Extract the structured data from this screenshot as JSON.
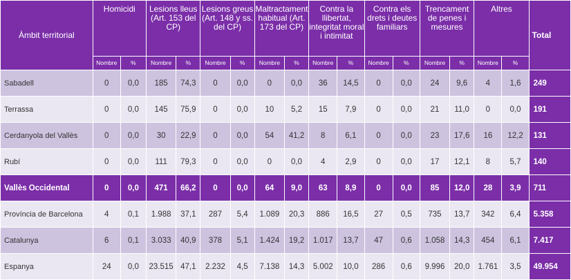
{
  "headers": {
    "ambit": "Àmbit territorial",
    "groups": [
      "Homicidi",
      "Lesions lleus (Art. 153 del CP)",
      "Lesions greus (Art. 148 y ss. del CP)",
      "Maltractament habitual (Art. 173 del CP)",
      "Contra la llibertat, integritat moral i intimitat",
      "Contra els drets i deutes familiars",
      "Trencament de penes i mesures",
      "Altres"
    ],
    "total": "Total",
    "sub_nombre": "Nombre",
    "sub_pct": "%"
  },
  "rows": [
    {
      "name": "Sabadell",
      "cells": [
        "0",
        "0,0",
        "185",
        "74,3",
        "0",
        "0,0",
        "0",
        "0,0",
        "36",
        "14,5",
        "0",
        "0,0",
        "24",
        "9,6",
        "4",
        "1,6"
      ],
      "total": "249"
    },
    {
      "name": "Terrassa",
      "cells": [
        "0",
        "0,0",
        "145",
        "75,9",
        "0",
        "0,0",
        "10",
        "5,2",
        "15",
        "7,9",
        "0",
        "0,0",
        "21",
        "11,0",
        "0",
        "0,0"
      ],
      "total": "191"
    },
    {
      "name": "Cerdanyola del Vallès",
      "cells": [
        "0",
        "0,0",
        "30",
        "22,9",
        "0",
        "0,0",
        "54",
        "41,2",
        "8",
        "6,1",
        "0",
        "0,0",
        "23",
        "17,6",
        "16",
        "12,2"
      ],
      "total": "131"
    },
    {
      "name": "Rubí",
      "cells": [
        "0",
        "0,0",
        "111",
        "79,3",
        "0",
        "0,0",
        "0",
        "0,0",
        "4",
        "2,9",
        "0",
        "0,0",
        "17",
        "12,1",
        "8",
        "5,7"
      ],
      "total": "140"
    },
    {
      "name": "Vallès Occidental",
      "cells": [
        "0",
        "0,0",
        "471",
        "66,2",
        "0",
        "0,0",
        "64",
        "9,0",
        "63",
        "8,9",
        "0",
        "0,0",
        "85",
        "12,0",
        "28",
        "3,9"
      ],
      "total": "711",
      "highlight": true
    },
    {
      "name": "Província de Barcelona",
      "cells": [
        "4",
        "0,1",
        "1.988",
        "37,1",
        "287",
        "5,4",
        "1.089",
        "20,3",
        "886",
        "16,5",
        "27",
        "0,5",
        "735",
        "13,7",
        "342",
        "6,4"
      ],
      "total": "5.358"
    },
    {
      "name": "Catalunya",
      "cells": [
        "6",
        "0,1",
        "3.033",
        "40,9",
        "378",
        "5,1",
        "1.424",
        "19,2",
        "1.017",
        "13,7",
        "47",
        "0,6",
        "1.058",
        "14,3",
        "454",
        "6,1"
      ],
      "total": "7.417"
    },
    {
      "name": "Espanya",
      "cells": [
        "24",
        "0,0",
        "23.515",
        "47,1",
        "2.232",
        "4,5",
        "7.138",
        "14,3",
        "5.002",
        "10,0",
        "286",
        "0,6",
        "9.996",
        "20,0",
        "1.761",
        "3,5"
      ],
      "total": "49.954"
    }
  ],
  "colors": {
    "header_purple": "#7b2ea8",
    "row_dark": "#cdc3df",
    "row_light": "#ebe7f2"
  }
}
